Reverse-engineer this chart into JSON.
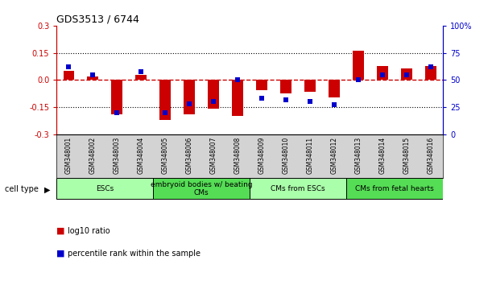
{
  "title": "GDS3513 / 6744",
  "samples": [
    "GSM348001",
    "GSM348002",
    "GSM348003",
    "GSM348004",
    "GSM348005",
    "GSM348006",
    "GSM348007",
    "GSM348008",
    "GSM348009",
    "GSM348010",
    "GSM348011",
    "GSM348012",
    "GSM348013",
    "GSM348014",
    "GSM348015",
    "GSM348016"
  ],
  "log10_ratio": [
    0.05,
    0.02,
    -0.19,
    0.03,
    -0.22,
    -0.19,
    -0.16,
    -0.2,
    -0.055,
    -0.075,
    -0.065,
    -0.095,
    0.16,
    0.075,
    0.065,
    0.075
  ],
  "percentile_rank": [
    62,
    55,
    20,
    58,
    20,
    28,
    30,
    50,
    33,
    32,
    30,
    27,
    50,
    55,
    55,
    62
  ],
  "ylim_left": [
    -0.3,
    0.3
  ],
  "ylim_right": [
    0,
    100
  ],
  "yticks_left": [
    -0.3,
    -0.15,
    0.0,
    0.15,
    0.3
  ],
  "yticks_right": [
    0,
    25,
    50,
    75,
    100
  ],
  "ytick_labels_right": [
    "0",
    "25",
    "50",
    "75",
    "100%"
  ],
  "dotted_lines_black": [
    -0.15,
    0.15
  ],
  "zero_line_color": "#CC0000",
  "bar_color": "#CC0000",
  "dot_color": "#0000CC",
  "cell_type_groups": [
    {
      "label": "ESCs",
      "start": 0,
      "end": 3,
      "color": "#AAFFAA"
    },
    {
      "label": "embryoid bodies w/ beating\nCMs",
      "start": 4,
      "end": 7,
      "color": "#55DD55"
    },
    {
      "label": "CMs from ESCs",
      "start": 8,
      "end": 11,
      "color": "#AAFFAA"
    },
    {
      "label": "CMs from fetal hearts",
      "start": 12,
      "end": 15,
      "color": "#55DD55"
    }
  ],
  "legend_items": [
    {
      "label": "log10 ratio",
      "color": "#CC0000"
    },
    {
      "label": "percentile rank within the sample",
      "color": "#0000CC"
    }
  ],
  "cell_type_label": "cell type",
  "background_color": "#ffffff",
  "plot_bg": "#ffffff",
  "sample_bg": "#D3D3D3",
  "tick_color_left": "#CC0000",
  "tick_color_right": "#0000CC",
  "bar_width": 0.45,
  "dot_size": 5
}
